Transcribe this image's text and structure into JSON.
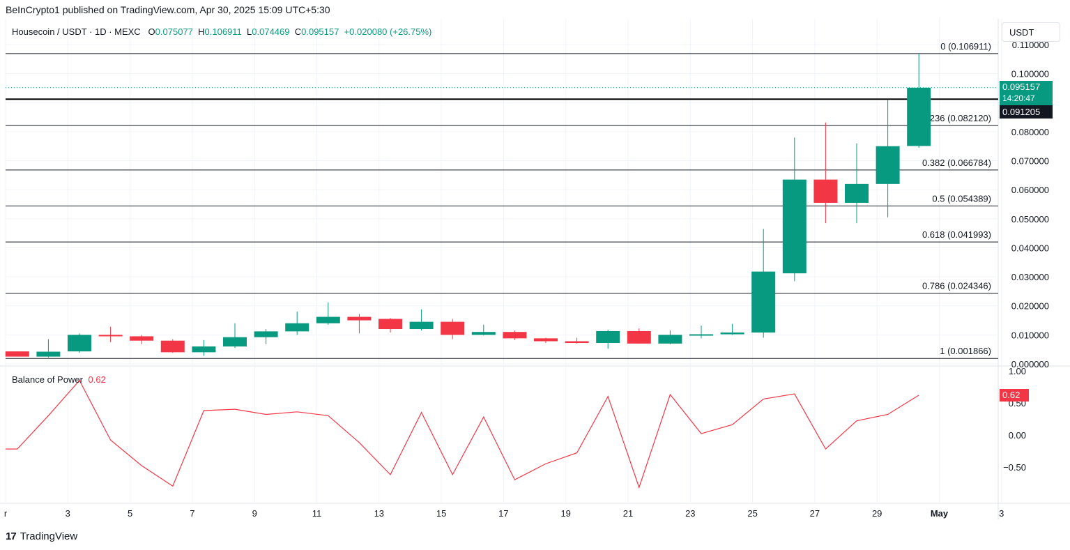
{
  "publisher": "BeInCrypto1 published on TradingView.com, Apr 30, 2025 15:09 UTC+5:30",
  "symbol": "Housecoin / USDT · 1D · MEXC",
  "ohlc": {
    "o_label": "O",
    "o": "0.075077",
    "h_label": "H",
    "h": "0.106911",
    "l_label": "L",
    "l": "0.074469",
    "c_label": "C",
    "c": "0.095157",
    "change": "+0.020080 (+26.75%)"
  },
  "currency": "USDT",
  "price_axis_labels": [
    "0.110000",
    "0.100000",
    "0.090000",
    "0.080000",
    "0.070000",
    "0.060000",
    "0.050000",
    "0.040000",
    "0.030000",
    "0.020000",
    "0.010000",
    "0.000000"
  ],
  "current_price_tag": {
    "price": "0.095157",
    "countdown": "14:20:47"
  },
  "crosshair_price_tag": "0.091205",
  "fib_levels": [
    {
      "label": "0 (0.106911)",
      "value": 0.106911
    },
    {
      "label": "0.236 (0.082120)",
      "value": 0.08212
    },
    {
      "label": "0.382 (0.066784)",
      "value": 0.066784
    },
    {
      "label": "0.5 (0.054389)",
      "value": 0.054389
    },
    {
      "label": "0.618 (0.041993)",
      "value": 0.041993
    },
    {
      "label": "0.786 (0.024346)",
      "value": 0.024346
    },
    {
      "label": "1 (0.001866)",
      "value": 0.001866
    }
  ],
  "bop": {
    "name": "Balance of Power",
    "value": "0.62",
    "axis_labels": [
      "1.00",
      "0.50",
      "0.00",
      "−0.50"
    ]
  },
  "x_axis_labels": [
    "r",
    "3",
    "5",
    "7",
    "9",
    "11",
    "13",
    "15",
    "17",
    "19",
    "21",
    "23",
    "25",
    "27",
    "29",
    "May",
    "3"
  ],
  "logo_text": "TradingView",
  "colors": {
    "up": "#089981",
    "down": "#f23645",
    "bop_line": "#f23645",
    "fib": "#131722"
  },
  "chart_data": {
    "type": "candlestick",
    "candles": [
      {
        "date": "Apr 1",
        "o": 0.0043,
        "h": 0.0043,
        "l": 0.0025,
        "c": 0.0025
      },
      {
        "date": "Apr 2",
        "o": 0.0025,
        "h": 0.0085,
        "l": 0.0022,
        "c": 0.0042
      },
      {
        "date": "Apr 3",
        "o": 0.0043,
        "h": 0.0105,
        "l": 0.0038,
        "c": 0.01
      },
      {
        "date": "Apr 4",
        "o": 0.01,
        "h": 0.0128,
        "l": 0.0075,
        "c": 0.0095
      },
      {
        "date": "Apr 5",
        "o": 0.0095,
        "h": 0.01,
        "l": 0.0068,
        "c": 0.008
      },
      {
        "date": "Apr 6",
        "o": 0.008,
        "h": 0.0085,
        "l": 0.0038,
        "c": 0.004
      },
      {
        "date": "Apr 7",
        "o": 0.004,
        "h": 0.0082,
        "l": 0.0028,
        "c": 0.006
      },
      {
        "date": "Apr 8",
        "o": 0.006,
        "h": 0.014,
        "l": 0.0055,
        "c": 0.0092
      },
      {
        "date": "Apr 9",
        "o": 0.0092,
        "h": 0.012,
        "l": 0.0068,
        "c": 0.0112
      },
      {
        "date": "Apr 10",
        "o": 0.0112,
        "h": 0.018,
        "l": 0.01,
        "c": 0.014
      },
      {
        "date": "Apr 11",
        "o": 0.014,
        "h": 0.0212,
        "l": 0.0135,
        "c": 0.0162
      },
      {
        "date": "Apr 12",
        "o": 0.0162,
        "h": 0.0172,
        "l": 0.0105,
        "c": 0.015
      },
      {
        "date": "Apr 13",
        "o": 0.0155,
        "h": 0.0158,
        "l": 0.0108,
        "c": 0.012
      },
      {
        "date": "Apr 14",
        "o": 0.012,
        "h": 0.0188,
        "l": 0.0115,
        "c": 0.0145
      },
      {
        "date": "Apr 15",
        "o": 0.0145,
        "h": 0.0155,
        "l": 0.0085,
        "c": 0.01
      },
      {
        "date": "Apr 16",
        "o": 0.01,
        "h": 0.0135,
        "l": 0.0098,
        "c": 0.011
      },
      {
        "date": "Apr 17",
        "o": 0.011,
        "h": 0.0115,
        "l": 0.0082,
        "c": 0.0088
      },
      {
        "date": "Apr 18",
        "o": 0.0088,
        "h": 0.009,
        "l": 0.0072,
        "c": 0.0078
      },
      {
        "date": "Apr 19",
        "o": 0.0078,
        "h": 0.009,
        "l": 0.007,
        "c": 0.0072
      },
      {
        "date": "Apr 20",
        "o": 0.0072,
        "h": 0.0118,
        "l": 0.0052,
        "c": 0.0113
      },
      {
        "date": "Apr 21",
        "o": 0.0113,
        "h": 0.0122,
        "l": 0.007,
        "c": 0.007
      },
      {
        "date": "Apr 22",
        "o": 0.007,
        "h": 0.0115,
        "l": 0.0068,
        "c": 0.01
      },
      {
        "date": "Apr 23",
        "o": 0.01,
        "h": 0.0132,
        "l": 0.0088,
        "c": 0.0102
      },
      {
        "date": "Apr 24",
        "o": 0.0102,
        "h": 0.0138,
        "l": 0.01,
        "c": 0.0108
      },
      {
        "date": "Apr 25",
        "o": 0.0108,
        "h": 0.0465,
        "l": 0.009,
        "c": 0.0318
      },
      {
        "date": "Apr 26",
        "o": 0.0312,
        "h": 0.078,
        "l": 0.0285,
        "c": 0.0635
      },
      {
        "date": "Apr 27",
        "o": 0.0635,
        "h": 0.0832,
        "l": 0.0485,
        "c": 0.0555
      },
      {
        "date": "Apr 28",
        "o": 0.0555,
        "h": 0.076,
        "l": 0.0485,
        "c": 0.062
      },
      {
        "date": "Apr 29",
        "o": 0.062,
        "h": 0.091,
        "l": 0.0505,
        "c": 0.075
      },
      {
        "date": "Apr 30",
        "o": 0.075077,
        "h": 0.106911,
        "l": 0.074469,
        "c": 0.095157
      }
    ],
    "bop_values": [
      -0.22,
      0.3,
      0.85,
      -0.08,
      -0.48,
      -0.8,
      0.38,
      0.4,
      0.32,
      0.36,
      0.3,
      -0.12,
      -0.62,
      0.35,
      -0.62,
      0.28,
      -0.7,
      -0.45,
      -0.28,
      0.6,
      -0.82,
      0.63,
      0.02,
      0.16,
      0.56,
      0.64,
      -0.22,
      0.22,
      0.32,
      0.62
    ],
    "price_range": [
      0,
      0.11
    ],
    "bop_range": [
      -0.85,
      1.0
    ]
  }
}
